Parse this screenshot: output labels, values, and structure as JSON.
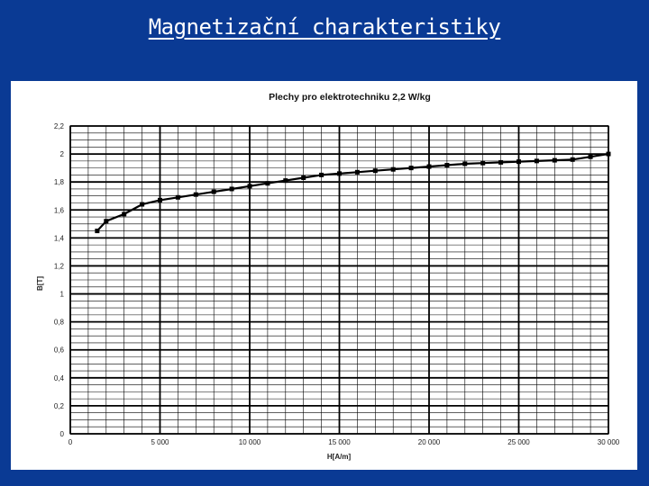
{
  "slide": {
    "title": "Magnetizační charakteristiky"
  },
  "chart_data": {
    "type": "line",
    "title": "Plechy pro elektrotechniku 2,2 W/kg",
    "xlabel": "H[A/m]",
    "ylabel": "B[T]",
    "xlim": [
      0,
      30000
    ],
    "ylim": [
      0,
      2.2
    ],
    "x_major_ticks": [
      0,
      5000,
      10000,
      15000,
      20000,
      25000,
      30000
    ],
    "x_tick_labels": [
      "0",
      "5 000",
      "10 000",
      "15 000",
      "20 000",
      "25 000",
      "30 000"
    ],
    "y_major_ticks": [
      0,
      0.2,
      0.4,
      0.6,
      0.8,
      1,
      1.2,
      1.4,
      1.6,
      1.8,
      2,
      2.2
    ],
    "y_tick_labels": [
      "0",
      "0,2",
      "0,4",
      "0,6",
      "0,8",
      "1",
      "1,2",
      "1,4",
      "1,6",
      "1,8",
      "2",
      "2,2"
    ],
    "grid": true,
    "legend": "none",
    "series": [
      {
        "x": [
          1500,
          2000,
          3000,
          4000,
          5000,
          6000,
          7000,
          8000,
          9000,
          10000,
          11000,
          12000,
          13000,
          14000,
          15000,
          16000,
          17000,
          18000,
          19000,
          20000,
          21000,
          22000,
          23000,
          24000,
          25000,
          26000,
          27000,
          28000,
          29000,
          30000
        ],
        "y": [
          1.45,
          1.52,
          1.57,
          1.64,
          1.67,
          1.69,
          1.71,
          1.73,
          1.75,
          1.77,
          1.79,
          1.81,
          1.83,
          1.85,
          1.86,
          1.87,
          1.88,
          1.89,
          1.9,
          1.91,
          1.92,
          1.93,
          1.935,
          1.94,
          1.945,
          1.95,
          1.955,
          1.96,
          1.98,
          2.0
        ]
      }
    ],
    "colors": {
      "line": "#000000",
      "grid": "#000000",
      "background": "#ffffff",
      "slide_background": "#0a3a94",
      "title_color": "#ffffff"
    }
  }
}
